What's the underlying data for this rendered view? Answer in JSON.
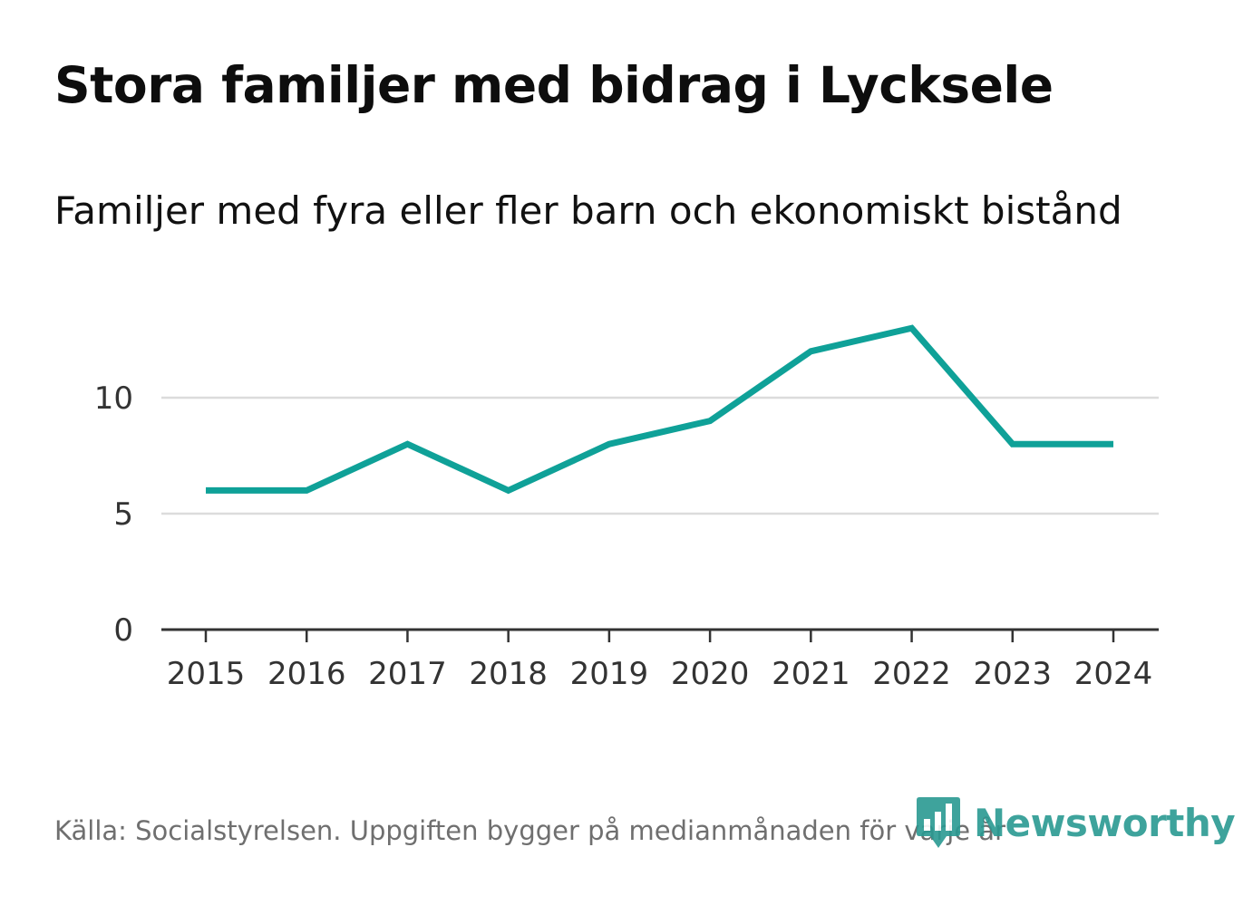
{
  "title": "Stora familjer med bidrag i Lycksele",
  "subtitle": "Familjer med fyra eller fler barn och ekonomiskt bistånd",
  "footer": "Källa: Socialstyrelsen. Uppgiften bygger på medianmånaden för varje år",
  "logo": {
    "name": "Newsworthy",
    "icon": "bar-chart-pin-icon"
  },
  "colors": {
    "line": "#0fa198",
    "grid": "#dcdcdc",
    "axis": "#333333",
    "brand": "#2a9a92"
  },
  "chart_data": {
    "type": "line",
    "title": "Stora familjer med bidrag i Lycksele",
    "subtitle": "Familjer med fyra eller fler barn och ekonomiskt bistånd",
    "xlabel": "",
    "ylabel": "",
    "categories": [
      "2015",
      "2016",
      "2017",
      "2018",
      "2019",
      "2020",
      "2021",
      "2022",
      "2023",
      "2024"
    ],
    "series": [
      {
        "name": "Familjer med fyra eller fler barn och ekonomiskt bistånd",
        "values": [
          6,
          6,
          8,
          6,
          8,
          9,
          12,
          13,
          8,
          8
        ]
      }
    ],
    "ylim": [
      0,
      15
    ],
    "yticks": [
      0,
      5,
      10
    ],
    "grid": true,
    "legend": "none"
  }
}
